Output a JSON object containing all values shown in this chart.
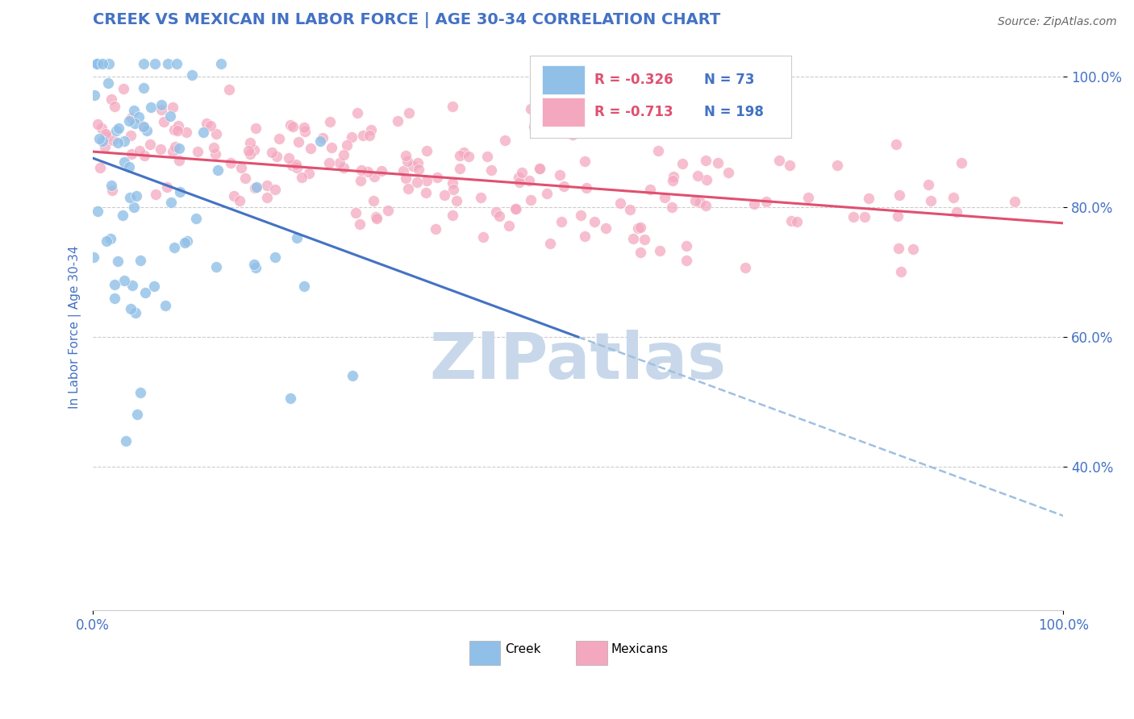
{
  "title": "CREEK VS MEXICAN IN LABOR FORCE | AGE 30-34 CORRELATION CHART",
  "source_text": "Source: ZipAtlas.com",
  "ylabel": "In Labor Force | Age 30-34",
  "xlim": [
    0.0,
    1.0
  ],
  "ylim": [
    0.18,
    1.05
  ],
  "x_tick_positions": [
    0.0,
    1.0
  ],
  "x_tick_labels": [
    "0.0%",
    "100.0%"
  ],
  "y_ticks": [
    0.4,
    0.6,
    0.8,
    1.0
  ],
  "y_tick_labels": [
    "40.0%",
    "60.0%",
    "80.0%",
    "100.0%"
  ],
  "creek_color": "#90C0E8",
  "mexican_color": "#F4A8C0",
  "creek_R": -0.326,
  "creek_N": 73,
  "mexican_R": -0.713,
  "mexican_N": 198,
  "creek_line_color": "#4472C4",
  "mexican_line_color": "#E05070",
  "dashed_line_color": "#A0C0E0",
  "watermark": "ZIPatlas",
  "watermark_color": "#C8D8EA",
  "background_color": "#FFFFFF",
  "title_color": "#4472C4",
  "title_fontsize": 14,
  "axis_label_color": "#4472C4",
  "tick_label_color": "#4472C4",
  "legend_R_color": "#E05070",
  "legend_N_color": "#4472C4",
  "creek_line_y0": 0.875,
  "creek_line_y_at_half": 0.6,
  "creek_line_y1": 0.375,
  "mexican_line_y0": 0.885,
  "mexican_line_y1": 0.775
}
